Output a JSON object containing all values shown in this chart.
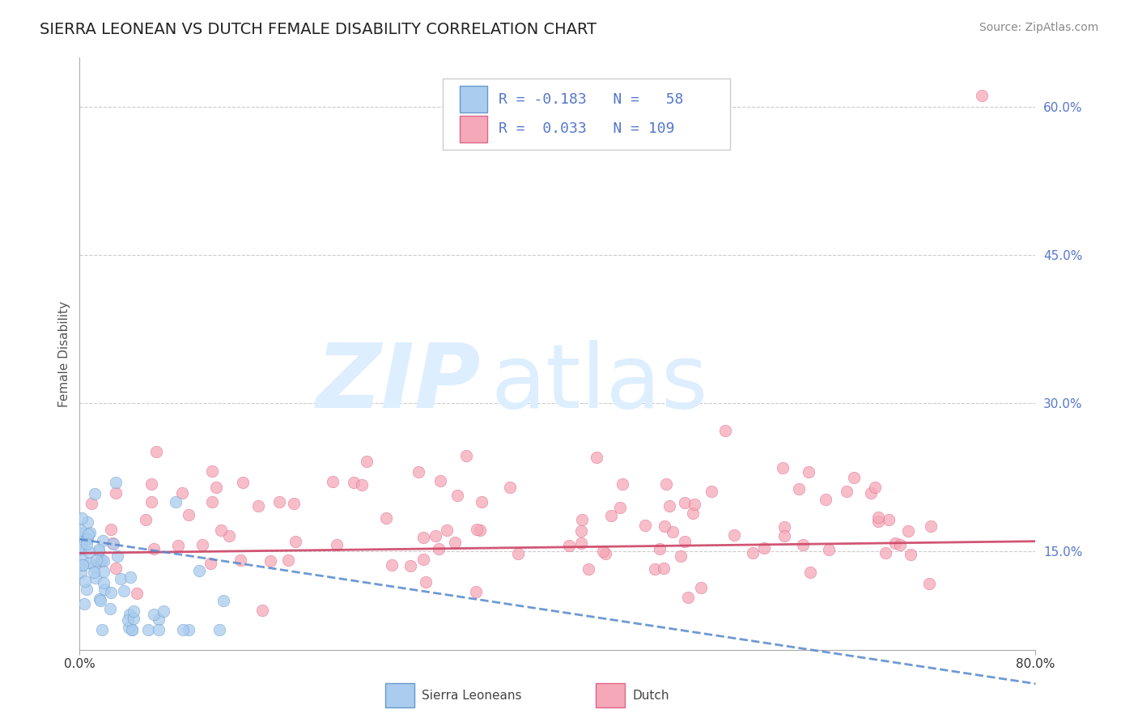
{
  "title": "SIERRA LEONEAN VS DUTCH FEMALE DISABILITY CORRELATION CHART",
  "source": "Source: ZipAtlas.com",
  "ylabel": "Female Disability",
  "xlim": [
    0.0,
    0.8
  ],
  "ylim": [
    0.05,
    0.65
  ],
  "yticks": [
    0.15,
    0.3,
    0.45,
    0.6
  ],
  "ytick_labels": [
    "15.0%",
    "30.0%",
    "45.0%",
    "60.0%"
  ],
  "sl_scatter_color": "#aaccee",
  "sl_edge_color": "#6699cc",
  "sl_line_color": "#5588cc",
  "dutch_scatter_color": "#f5a8b8",
  "dutch_edge_color": "#dd6688",
  "dutch_line_color": "#cc4466",
  "background_color": "#ffffff",
  "grid_color": "#cccccc",
  "watermark_color": "#ddeeff",
  "tick_color": "#5577cc",
  "title_fontsize": 14,
  "axis_label_fontsize": 11,
  "tick_fontsize": 11,
  "legend_fontsize": 13,
  "source_fontsize": 10
}
